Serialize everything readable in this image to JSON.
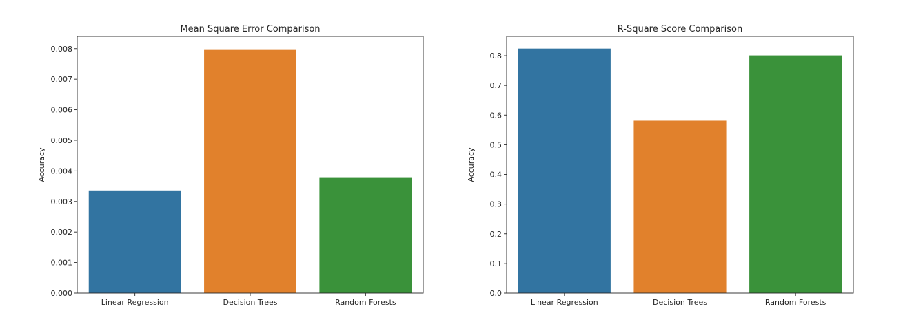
{
  "chart_data": [
    {
      "type": "bar",
      "title": "Mean Square Error Comparison",
      "xlabel": "",
      "ylabel": "Accuracy",
      "categories": [
        "Linear Regression",
        "Decision Trees",
        "Random Forests"
      ],
      "values": [
        0.00336,
        0.00798,
        0.00377
      ],
      "colors": [
        "#3274a1",
        "#e1812c",
        "#3a923a"
      ],
      "ylim": [
        0,
        0.0084
      ],
      "yticks": [
        0.0,
        0.001,
        0.002,
        0.003,
        0.004,
        0.005,
        0.006,
        0.007,
        0.008
      ],
      "ytick_labels": [
        "0.000",
        "0.001",
        "0.002",
        "0.003",
        "0.004",
        "0.005",
        "0.006",
        "0.007",
        "0.008"
      ],
      "grid": false
    },
    {
      "type": "bar",
      "title": "R-Square Score Comparison",
      "xlabel": "",
      "ylabel": "Accuracy",
      "categories": [
        "Linear Regression",
        "Decision Trees",
        "Random Forests"
      ],
      "values": [
        0.824,
        0.581,
        0.801
      ],
      "colors": [
        "#3274a1",
        "#e1812c",
        "#3a923a"
      ],
      "ylim": [
        0,
        0.865
      ],
      "yticks": [
        0.0,
        0.1,
        0.2,
        0.3,
        0.4,
        0.5,
        0.6,
        0.7,
        0.8
      ],
      "ytick_labels": [
        "0.0",
        "0.1",
        "0.2",
        "0.3",
        "0.4",
        "0.5",
        "0.6",
        "0.7",
        "0.8"
      ],
      "grid": false
    }
  ]
}
